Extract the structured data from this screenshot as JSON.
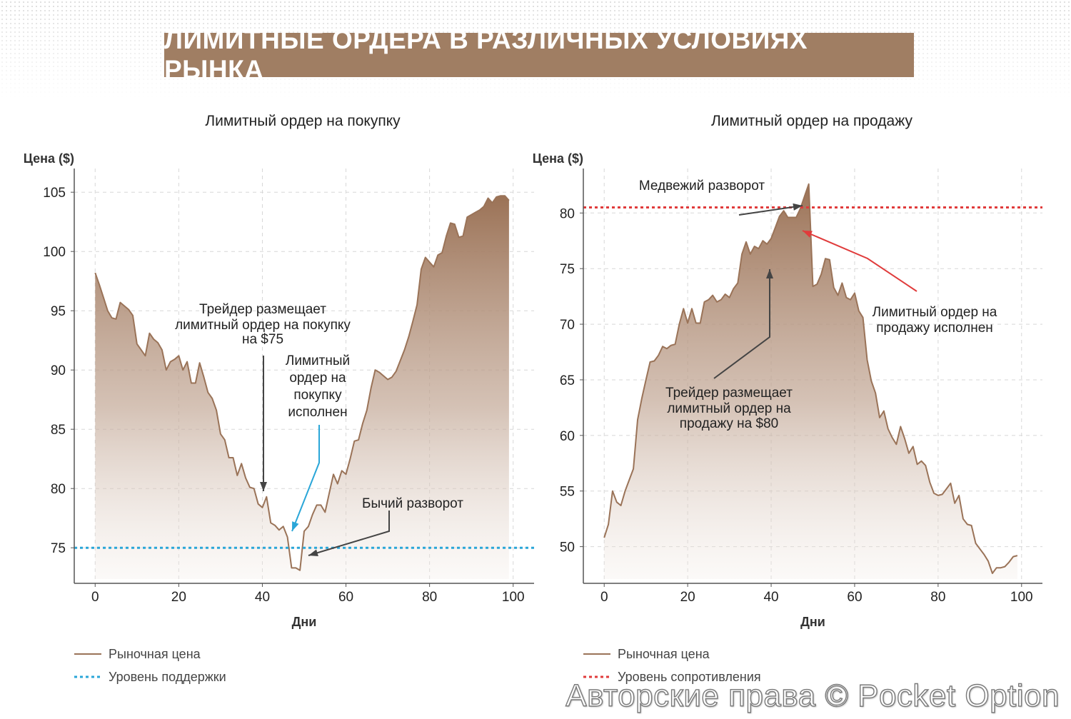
{
  "banner_title": "ЛИМИТНЫЕ ОРДЕРА В РАЗЛИЧНЫХ УСЛОВИЯХ РЫНКА",
  "watermark": "Авторские права © Pocket Option",
  "colors": {
    "banner": "#a07e63",
    "price_line": "#9a7358",
    "fill_top": "#9b7256",
    "support": "#2aa6d8",
    "resistance": "#e03b3b",
    "annotation_dark": "#444444"
  },
  "chart_data": [
    {
      "type": "area",
      "title": "Лимитный ордер на покупку",
      "ylabel": "Цена ($)",
      "xlabel": "Дни",
      "xlim": [
        -5,
        105
      ],
      "ylim": [
        72,
        107
      ],
      "xticks": [
        0,
        20,
        40,
        60,
        80,
        100
      ],
      "yticks": [
        75,
        80,
        85,
        90,
        95,
        100,
        105
      ],
      "grid": true,
      "series": [
        {
          "name": "Рыночная цена",
          "x": [
            0,
            1,
            2,
            3,
            4,
            5,
            6,
            7,
            8,
            9,
            10,
            11,
            12,
            13,
            14,
            15,
            16,
            17,
            18,
            19,
            20,
            21,
            22,
            23,
            24,
            25,
            26,
            27,
            28,
            29,
            30,
            31,
            32,
            33,
            34,
            35,
            36,
            37,
            38,
            39,
            40,
            41,
            42,
            43,
            44,
            45,
            46,
            47,
            48,
            49,
            50,
            51,
            52,
            53,
            54,
            55,
            56,
            57,
            58,
            59,
            60,
            61,
            62,
            63,
            64,
            65,
            66,
            67,
            68,
            69,
            70,
            71,
            72,
            73,
            74,
            75,
            76,
            77,
            78,
            79,
            80,
            81,
            82,
            83,
            84,
            85,
            86,
            87,
            88,
            89,
            90,
            91,
            92,
            93,
            94,
            95,
            96,
            97,
            98,
            99
          ],
          "values": [
            98.2,
            97.2,
            96.1,
            95.0,
            94.4,
            94.3,
            95.7,
            95.4,
            95.1,
            94.6,
            92.2,
            91.7,
            91.2,
            93.1,
            92.6,
            92.3,
            91.7,
            90.0,
            90.7,
            90.9,
            91.2,
            90.0,
            90.7,
            88.9,
            88.9,
            90.6,
            89.4,
            88.1,
            87.6,
            86.6,
            84.6,
            84.1,
            82.6,
            82.6,
            81.1,
            82.1,
            80.9,
            80.1,
            80.0,
            78.7,
            78.4,
            79.3,
            77.1,
            76.9,
            76.5,
            76.8,
            75.9,
            73.3,
            73.3,
            73.1,
            76.4,
            76.8,
            77.8,
            78.6,
            78.6,
            78.0,
            79.6,
            81.2,
            80.4,
            81.5,
            81.2,
            82.5,
            84.0,
            84.1,
            85.5,
            86.6,
            88.5,
            90.0,
            89.8,
            89.5,
            89.2,
            89.4,
            89.9,
            90.8,
            91.7,
            92.8,
            94.1,
            95.5,
            98.5,
            99.5,
            99.1,
            98.7,
            99.7,
            99.9,
            101.3,
            102.4,
            102.3,
            101.2,
            101.3,
            102.9,
            103.1,
            103.3,
            103.5,
            103.8,
            104.5,
            104.1,
            104.6,
            104.7,
            104.7,
            104.3
          ]
        },
        {
          "name": "Уровень поддержки",
          "level": 75
        }
      ],
      "annotations": [
        {
          "text": [
            "Трейдер размещает",
            "лимитный ордер на покупку",
            "на $75"
          ],
          "target": [
            40,
            79.3
          ],
          "color": "dark"
        },
        {
          "text": [
            "Лимитный",
            "ордер на",
            "покупку",
            "исполнен"
          ],
          "target": [
            47,
            76.0
          ],
          "color": "blue"
        },
        {
          "text": [
            "Бычий разворот"
          ],
          "target": [
            49.5,
            73.1
          ],
          "color": "dark"
        }
      ],
      "legend": [
        {
          "label": "Рыночная цена",
          "style": "solid"
        },
        {
          "label": "Уровень поддержки",
          "style": "dotted"
        }
      ]
    },
    {
      "type": "area",
      "title": "Лимитный ордер на продажу",
      "ylabel": "Цена ($)",
      "xlabel": "Дни",
      "xlim": [
        -5,
        105
      ],
      "ylim": [
        46.7,
        84
      ],
      "xticks": [
        0,
        20,
        40,
        60,
        80,
        100
      ],
      "yticks": [
        50,
        55,
        60,
        65,
        70,
        75,
        80
      ],
      "grid": true,
      "series": [
        {
          "name": "Рыночная цена",
          "x": [
            0,
            1,
            2,
            3,
            4,
            5,
            6,
            7,
            8,
            9,
            10,
            11,
            12,
            13,
            14,
            15,
            16,
            17,
            18,
            19,
            20,
            21,
            22,
            23,
            24,
            25,
            26,
            27,
            28,
            29,
            30,
            31,
            32,
            33,
            34,
            35,
            36,
            37,
            38,
            39,
            40,
            41,
            42,
            43,
            44,
            45,
            46,
            47,
            48,
            49,
            50,
            51,
            52,
            53,
            54,
            55,
            56,
            57,
            58,
            59,
            60,
            61,
            62,
            63,
            64,
            65,
            66,
            67,
            68,
            69,
            70,
            71,
            72,
            73,
            74,
            75,
            76,
            77,
            78,
            79,
            80,
            81,
            82,
            83,
            84,
            85,
            86,
            87,
            88,
            89,
            90,
            91,
            92,
            93,
            94,
            95,
            96,
            97,
            98,
            99
          ],
          "values": [
            50.8,
            52.0,
            55.0,
            54.0,
            53.7,
            55.0,
            56.0,
            57.0,
            61.4,
            63.3,
            65.0,
            66.6,
            66.7,
            67.2,
            68.0,
            67.8,
            68.1,
            68.2,
            70.0,
            71.4,
            70.1,
            71.4,
            70.1,
            70.1,
            72.0,
            72.2,
            72.6,
            72.0,
            72.2,
            72.7,
            72.4,
            73.2,
            73.7,
            76.3,
            77.4,
            76.3,
            77.0,
            76.8,
            77.5,
            77.2,
            77.7,
            78.7,
            79.7,
            80.2,
            79.6,
            79.6,
            79.6,
            80.4,
            81.5,
            82.6,
            73.4,
            73.6,
            74.5,
            75.9,
            75.8,
            73.3,
            72.6,
            73.7,
            72.4,
            72.2,
            72.8,
            71.2,
            70.6,
            66.8,
            64.9,
            63.8,
            61.6,
            62.2,
            60.6,
            59.8,
            59.2,
            60.8,
            59.7,
            58.4,
            59.0,
            57.4,
            57.7,
            57.3,
            55.8,
            54.8,
            54.6,
            54.7,
            55.2,
            55.7,
            53.9,
            54.6,
            52.5,
            52.0,
            51.9,
            50.3,
            49.8,
            49.3,
            48.7,
            47.6,
            48.1,
            48.1,
            48.2,
            48.6,
            49.1,
            49.2
          ]
        },
        {
          "name": "Уровень сопротивления",
          "level": 80.5
        }
      ],
      "annotations": [
        {
          "text": [
            "Медвежий разворот"
          ],
          "target": [
            48.5,
            82.4
          ],
          "color": "dark"
        },
        {
          "text": [
            "Лимитный ордер на",
            "продажу исполнен"
          ],
          "target": [
            48,
            80.2
          ],
          "color": "red"
        },
        {
          "text": [
            "Трейдер размещает",
            "лимитный ордер на",
            "продажу на $80"
          ],
          "target": [
            40,
            76.8
          ],
          "color": "dark"
        }
      ],
      "legend": [
        {
          "label": "Рыночная цена",
          "style": "solid"
        },
        {
          "label": "Уровень сопротивления",
          "style": "dotted"
        }
      ]
    }
  ]
}
